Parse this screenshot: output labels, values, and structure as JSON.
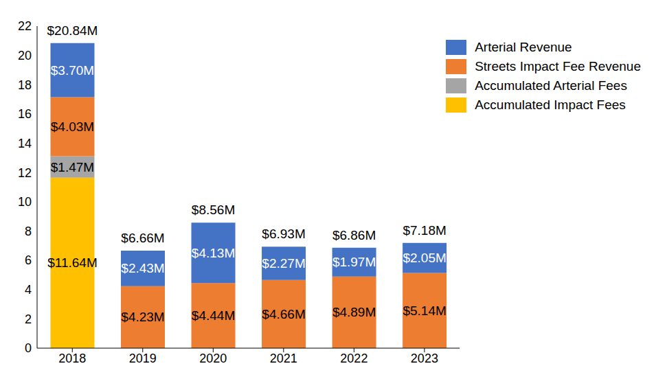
{
  "chart_data": {
    "type": "bar",
    "stacked": true,
    "data_labels": true,
    "grid": false,
    "legend": "top-right",
    "categories": [
      "2018",
      "2019",
      "2020",
      "2021",
      "2022",
      "2023"
    ],
    "ylim": [
      0,
      22
    ],
    "yticks": [
      0,
      2,
      4,
      6,
      8,
      10,
      12,
      14,
      16,
      18,
      20,
      22
    ],
    "series": [
      {
        "name": "Arterial Revenue",
        "color": "#4472C4",
        "values": [
          3.7,
          2.43,
          4.13,
          2.27,
          1.97,
          2.05
        ],
        "value_labels": [
          "$3.70M",
          "$2.43M",
          "$4.13M",
          "$2.27M",
          "$1.97M",
          "$2.05M"
        ]
      },
      {
        "name": "Streets Impact Fee Revenue",
        "color": "#ED7D31",
        "values": [
          4.03,
          4.23,
          4.44,
          4.66,
          4.89,
          5.14
        ],
        "value_labels": [
          "$4.03M",
          "$4.23M",
          "$4.44M",
          "$4.66M",
          "$4.89M",
          "$5.14M"
        ]
      },
      {
        "name": "Accumulated Arterial Fees",
        "color": "#A5A5A5",
        "values": [
          1.47,
          null,
          null,
          null,
          null,
          null
        ],
        "value_labels": [
          "$1.47M",
          null,
          null,
          null,
          null,
          null
        ]
      },
      {
        "name": "Accumulated Impact Fees",
        "color": "#FFC000",
        "values": [
          11.64,
          null,
          null,
          null,
          null,
          null
        ],
        "value_labels": [
          "$11.64M",
          null,
          null,
          null,
          null,
          null
        ]
      }
    ],
    "totals": [
      20.84,
      6.66,
      8.56,
      6.93,
      6.86,
      7.18
    ],
    "total_labels": [
      "$20.84M",
      "$6.66M",
      "$8.56M",
      "$6.93M",
      "$6.86M",
      "$7.18M"
    ]
  }
}
